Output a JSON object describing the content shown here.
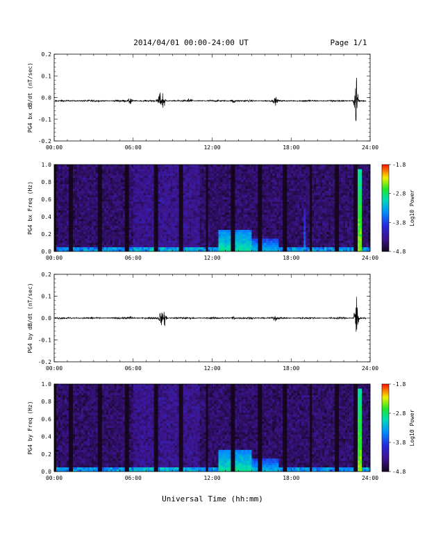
{
  "header": {
    "date_range": "2014/04/01  00:00-24:00 UT",
    "page": "Page 1/1"
  },
  "chart_data": [
    {
      "type": "line",
      "ylabel": "PG4 bx dB/dt (nT/sec)",
      "xlim": [
        0,
        24
      ],
      "ylim": [
        -0.2,
        0.2
      ],
      "x_tick_labels": [
        "00:00",
        "06:00",
        "12:00",
        "18:00",
        "24:00"
      ],
      "y_tick_labels": [
        "0.2",
        "0.1",
        "0.0",
        "-0.1",
        "-0.2"
      ],
      "baseline": -0.015,
      "bursts": [
        {
          "t": 5.8,
          "amp": 0.02
        },
        {
          "t": 8.0,
          "amp": 0.04
        },
        {
          "t": 8.3,
          "amp": 0.05
        },
        {
          "t": 10.3,
          "amp": 0.015
        },
        {
          "t": 13.6,
          "amp": 0.015
        },
        {
          "t": 16.8,
          "amp": 0.015
        },
        {
          "t": 22.9,
          "amp": 0.07
        },
        {
          "t": 23.0,
          "amp": 0.09
        }
      ]
    },
    {
      "type": "heatmap",
      "ylabel": "PG4 bx Freq (Hz)",
      "xlim": [
        0,
        24
      ],
      "ylim": [
        0,
        1.0
      ],
      "x_tick_labels": [
        "00:00",
        "06:00",
        "12:00",
        "18:00",
        "24:00"
      ],
      "y_tick_labels": [
        "1.0",
        "0.8",
        "0.6",
        "0.4",
        "0.2",
        "0.0"
      ],
      "colorbar": {
        "label": "Log10 Power",
        "range": [
          -4.8,
          -1.8
        ],
        "tick_labels": [
          "-1.8",
          "-2.8",
          "-3.8",
          "-4.8"
        ]
      },
      "dark_gaps": [
        0,
        1.3,
        3.5,
        5.5,
        7.7,
        9.6,
        11.6,
        13.6,
        15.6,
        17.5,
        19.5,
        21.5,
        22.9
      ],
      "features": [
        {
          "t_start": 12.5,
          "t_end": 15.0,
          "f_top": 0.25,
          "level": -2.9
        },
        {
          "t_start": 15.0,
          "t_end": 17.0,
          "f_top": 0.15,
          "level": -3.2
        },
        {
          "t_start": 18.9,
          "t_end": 19.1,
          "f_top": 0.5,
          "level": -3.5
        },
        {
          "t_start": 22.7,
          "t_end": 23.3,
          "f_top": 0.95,
          "level": -2.4
        }
      ]
    },
    {
      "type": "line",
      "ylabel": "PG4 by dB/dt (nT/sec)",
      "xlim": [
        0,
        24
      ],
      "ylim": [
        -0.2,
        0.2
      ],
      "x_tick_labels": [
        "00:00",
        "06:00",
        "12:00",
        "18:00",
        "24:00"
      ],
      "y_tick_labels": [
        "0.2",
        "0.1",
        "0.0",
        "-0.1",
        "-0.2"
      ],
      "baseline": 0.0,
      "bursts": [
        {
          "t": 5.8,
          "amp": 0.01
        },
        {
          "t": 8.1,
          "amp": 0.035
        },
        {
          "t": 8.4,
          "amp": 0.04
        },
        {
          "t": 13.6,
          "amp": 0.012
        },
        {
          "t": 16.8,
          "amp": 0.012
        },
        {
          "t": 22.9,
          "amp": 0.06
        },
        {
          "t": 23.0,
          "amp": 0.08
        }
      ]
    },
    {
      "type": "heatmap",
      "ylabel": "PG4 by Freq (Hz)",
      "xlim": [
        0,
        24
      ],
      "ylim": [
        0,
        1.0
      ],
      "x_tick_labels": [
        "00:00",
        "06:00",
        "12:00",
        "18:00",
        "24:00"
      ],
      "y_tick_labels": [
        "1.0",
        "0.8",
        "0.6",
        "0.4",
        "0.2",
        "0.0"
      ],
      "colorbar": {
        "label": "Log10 Power",
        "range": [
          -4.8,
          -1.8
        ],
        "tick_labels": [
          "-1.8",
          "-2.8",
          "-3.8",
          "-4.8"
        ]
      },
      "dark_gaps": [
        0,
        1.3,
        3.5,
        5.5,
        7.7,
        9.6,
        11.6,
        13.6,
        15.6,
        17.5,
        19.5,
        21.5,
        22.9
      ],
      "features": [
        {
          "t_start": 12.5,
          "t_end": 15.0,
          "f_top": 0.25,
          "level": -2.9
        },
        {
          "t_start": 15.0,
          "t_end": 17.0,
          "f_top": 0.15,
          "level": -3.2
        },
        {
          "t_start": 22.7,
          "t_end": 23.3,
          "f_top": 0.95,
          "level": -2.4
        }
      ]
    }
  ],
  "xaxis_title": "Universal Time (hh:mm)",
  "colors": {
    "spec_low": "#1a0a2e",
    "spec_mid": "#3b1f9a",
    "spec_high": "#ff2b00"
  }
}
